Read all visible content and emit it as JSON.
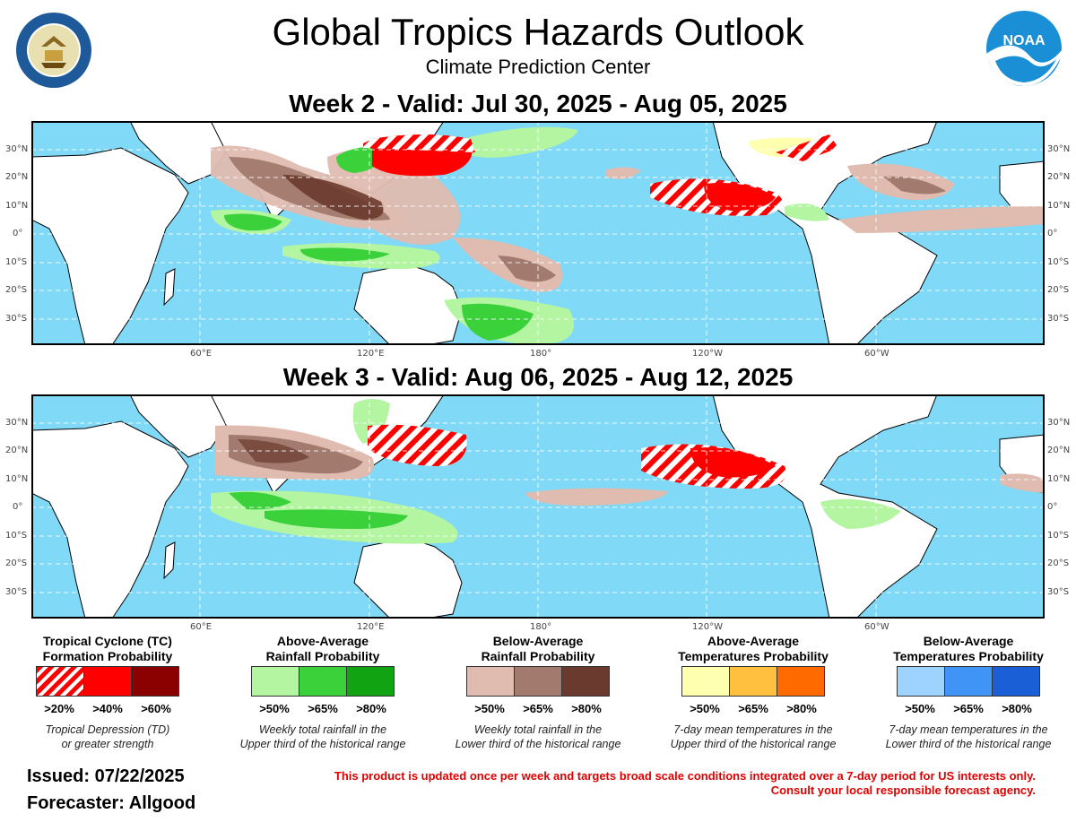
{
  "header": {
    "title": "Global Tropics Hazards Outlook",
    "subtitle": "Climate Prediction Center",
    "week2_title": "Week 2 - Valid: Jul 30, 2025 - Aug 05, 2025",
    "week3_title": "Week 3 - Valid: Aug 06, 2025 - Aug 12, 2025",
    "noaa_logo_text": "NOAA",
    "seal_text": "DEPARTMENT OF COMMERCE · UNITED STATES OF AMERICA"
  },
  "map_axes": {
    "lat_labels": [
      "30°N",
      "20°N",
      "10°N",
      "0°",
      "10°S",
      "20°S",
      "30°S"
    ],
    "lon_labels": [
      "60°E",
      "120°E",
      "180°",
      "120°W",
      "60°W"
    ]
  },
  "legend": [
    {
      "title_line1": "Tropical Cyclone (TC)",
      "title_line2": "Formation Probability",
      "labels": [
        ">20%",
        ">40%",
        ">60%"
      ],
      "colors": [
        "hatched-red",
        "#ff0000",
        "#8b0000"
      ],
      "note_line1": "Tropical Depression (TD)",
      "note_line2": "or greater strength"
    },
    {
      "title_line1": "Above-Average",
      "title_line2": "Rainfall Probability",
      "labels": [
        ">50%",
        ">65%",
        ">80%"
      ],
      "colors": [
        "#b3f5a1",
        "#3ad13a",
        "#12a312"
      ],
      "note_line1": "Weekly total rainfall in the",
      "note_line2": "Upper third of the historical range"
    },
    {
      "title_line1": "Below-Average",
      "title_line2": "Rainfall Probability",
      "labels": [
        ">50%",
        ">65%",
        ">80%"
      ],
      "colors": [
        "#e0bcb0",
        "#a27a6e",
        "#6b3a2e"
      ],
      "note_line1": "Weekly total rainfall in the",
      "note_line2": "Lower third of the historical range"
    },
    {
      "title_line1": "Above-Average",
      "title_line2": "Temperatures Probability",
      "labels": [
        ">50%",
        ">65%",
        ">80%"
      ],
      "colors": [
        "#ffffb0",
        "#ffc040",
        "#ff6a00"
      ],
      "note_line1": "7-day mean temperatures in the",
      "note_line2": "Upper third of the historical range"
    },
    {
      "title_line1": "Below-Average",
      "title_line2": "Temperatures Probability",
      "labels": [
        ">50%",
        ">65%",
        ">80%"
      ],
      "colors": [
        "#9fd3ff",
        "#3f94f5",
        "#1a5fd6"
      ],
      "note_line1": "7-day mean temperatures in the",
      "note_line2": "Lower third of the historical range"
    }
  ],
  "footer": {
    "issued": "Issued: 07/22/2025",
    "forecaster": "Forecaster: Allgood",
    "disclaimer_line1": "This product is updated once per week and targets broad scale conditions integrated over a 7-day period for US interests only.",
    "disclaimer_line2": "Consult your local responsible forecast agency."
  },
  "colors": {
    "ocean": "#7fd9f7",
    "land": "#ffffff",
    "tc_red": "#ff0000",
    "disclaimer": "#e00000"
  }
}
